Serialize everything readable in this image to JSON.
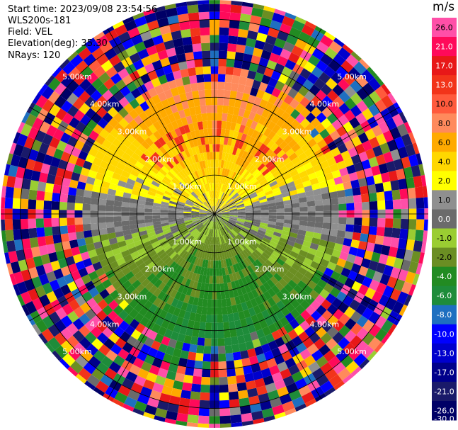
{
  "header": {
    "start_time": "Start time: 2023/09/08 23:54:56",
    "station": "WLS200s-181",
    "field": "Field: VEL",
    "elevation": "Elevation(deg): 35.30",
    "nrays": "NRays: 120"
  },
  "colorbar": {
    "unit": "m/s",
    "ticks": [
      "26.0",
      "21.0",
      "17.0",
      "13.0",
      "10.0",
      "8.0",
      "6.0",
      "4.0",
      "2.0",
      "1.0",
      "0.0",
      "-1.0",
      "-2.0",
      "-4.0",
      "-6.0",
      "-8.0",
      "-10.0",
      "-13.0",
      "-17.0",
      "-21.0",
      "-26.0",
      "-30.0"
    ],
    "colors": [
      "#ff4fa8",
      "#ff0a5a",
      "#e81818",
      "#f2341a",
      "#ff5a3c",
      "#ff8a5c",
      "#ffaa00",
      "#ffd700",
      "#ffff00",
      "#8f8f8f",
      "#6b6b6b",
      "#9acd32",
      "#6b8e23",
      "#228b22",
      "#1e8c3a",
      "#1e6fc0",
      "#0000ff",
      "#0000cd",
      "#00008b",
      "#1a1a6a",
      "#000066"
    ]
  },
  "chart_data": {
    "type": "heatmap",
    "subtype": "radar PPI (plan position indicator)",
    "field": "VEL",
    "unit": "m/s",
    "nrays": 120,
    "elevation_deg": 35.3,
    "range_rings_km": [
      1.0,
      2.0,
      3.0,
      4.0,
      5.0
    ],
    "ring_labels": [
      "1.00km",
      "2.00km",
      "3.00km",
      "4.00km",
      "5.00km"
    ],
    "spokes_deg": [
      0,
      30,
      60,
      90,
      120,
      150,
      180,
      210,
      240,
      270,
      300,
      330
    ],
    "pattern": {
      "north_half_inner": "positive velocities 1 to 8 m/s (yellow/orange), pink near 2 km",
      "south_half_inner": "negative velocities -1 to -8 m/s (olive/green)",
      "near_zero_band": "gray along east-west axis",
      "outer_gates": "noise, full colour range"
    }
  }
}
